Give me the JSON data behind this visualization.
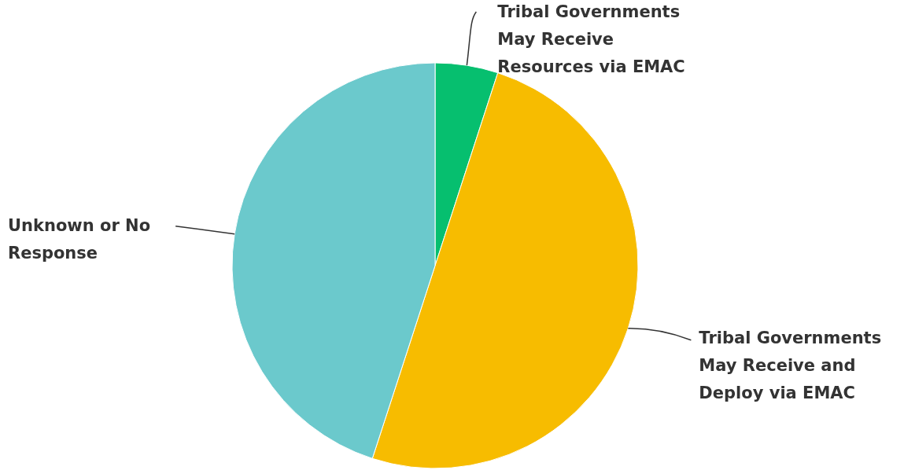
{
  "chart_data": {
    "type": "pie",
    "categories": [
      "Tribal Governments May Receive Resources via EMAC",
      "Tribal Governments May Receive and Deploy via EMAC",
      "Unknown or No Response"
    ],
    "values": [
      5,
      50,
      45
    ],
    "colors": [
      "#06bf6f",
      "#f7bc00",
      "#6bc9cc"
    ]
  }
}
